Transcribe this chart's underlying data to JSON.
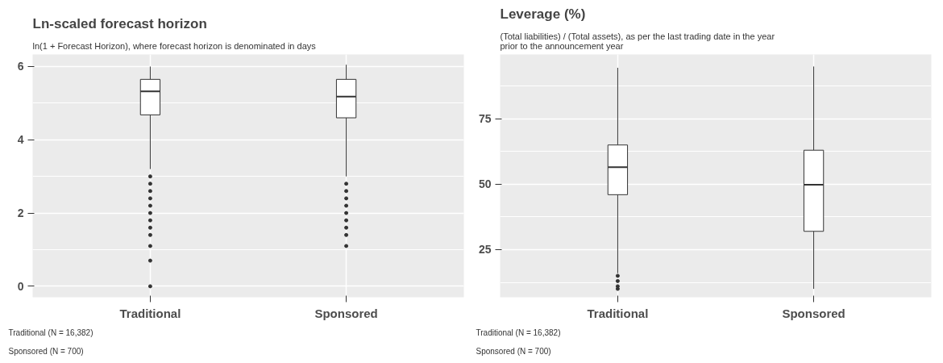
{
  "chart_data": [
    {
      "type": "box",
      "title": "Ln-scaled forecast horizon",
      "subtitle": "ln(1 + Forecast Horizon), where forecast horizon is denominated in days",
      "categories": [
        "Traditional",
        "Sponsored"
      ],
      "ylim": [
        -0.3,
        6.33
      ],
      "yticks": [
        0,
        2,
        4,
        6
      ],
      "grid": true,
      "color": "#ffffff",
      "boxes": [
        {
          "low": 3.2,
          "q1": 4.68,
          "median": 5.32,
          "q3": 5.65,
          "high": 6.0,
          "outliers": [
            3.0,
            2.8,
            2.6,
            2.4,
            2.2,
            2.0,
            1.8,
            1.6,
            1.4,
            1.1,
            0.7,
            0
          ]
        },
        {
          "low": 3.0,
          "q1": 4.6,
          "median": 5.18,
          "q3": 5.65,
          "high": 6.05,
          "outliers": [
            2.8,
            2.6,
            2.4,
            2.2,
            2.0,
            1.8,
            1.6,
            1.4,
            1.1
          ]
        }
      ],
      "annotations": [
        "Traditional (N = 16,382)",
        "Sponsored (N = 700)"
      ]
    },
    {
      "type": "box",
      "title": "Leverage (%)",
      "subtitle": "(Total liabilities) / (Total assets), as per the last trading date in the year\nprior to the announcement year",
      "categories": [
        "Traditional",
        "Sponsored"
      ],
      "ylim": [
        6.8,
        99.6
      ],
      "yticks": [
        25,
        50,
        75
      ],
      "grid": true,
      "color": "#ffffff",
      "boxes": [
        {
          "low": 16,
          "q1": 46,
          "median": 56.5,
          "q3": 65,
          "high": 94.5,
          "outliers": [
            15,
            13,
            11,
            10
          ]
        },
        {
          "low": 10,
          "q1": 32,
          "median": 49.8,
          "q3": 63,
          "high": 95
        }
      ],
      "annotations": [
        "Traditional (N = 16,382)",
        "Sponsored (N = 700)"
      ]
    }
  ]
}
